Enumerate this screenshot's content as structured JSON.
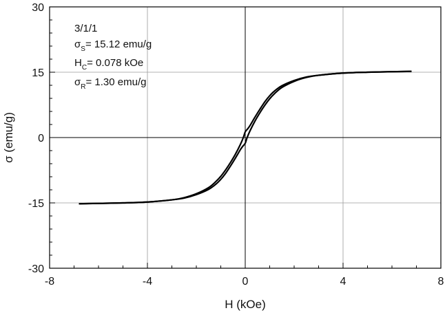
{
  "chart_data": {
    "type": "line",
    "title": "",
    "xlabel": "H (kOe)",
    "ylabel": "σ (emu/g)",
    "xlim": [
      -8,
      8
    ],
    "ylim": [
      -30,
      30
    ],
    "x_ticks": [
      -8,
      -4,
      0,
      4,
      8
    ],
    "y_ticks": [
      -30,
      -15,
      0,
      15,
      30
    ],
    "x_tick_labels": [
      "-8",
      "-4",
      "0",
      "4",
      "8"
    ],
    "y_tick_labels": [
      "-30",
      "-15",
      "0",
      "15",
      "30"
    ],
    "grid": true,
    "line_color": "#000000",
    "annotations": {
      "sample": "3/1/1",
      "ms": {
        "symbol": "σ",
        "sub": "S",
        "text": "= 15.12 emu/g"
      },
      "hc": {
        "symbol": "H",
        "sub": "C",
        "text": "= 0.078 kOe"
      },
      "mr": {
        "symbol": "σ",
        "sub": "R",
        "text": "= 1.30 emu/g"
      }
    },
    "series": [
      {
        "branch": "descending",
        "x": [
          6.8,
          5.0,
          4.0,
          3.0,
          2.5,
          2.0,
          1.5,
          1.2,
          1.0,
          0.8,
          0.6,
          0.4,
          0.2,
          0.1,
          0.0,
          -0.078,
          -0.2,
          -0.4,
          -0.6,
          -0.8,
          -1.0,
          -1.2,
          -1.5,
          -2.0,
          -2.5,
          -3.0,
          -4.0,
          -5.0,
          -6.8
        ],
        "y": [
          15.2,
          15.0,
          14.8,
          14.3,
          13.9,
          13.1,
          11.9,
          10.7,
          9.6,
          8.2,
          6.5,
          4.7,
          2.8,
          2.0,
          1.3,
          0.0,
          -1.6,
          -3.8,
          -5.7,
          -7.4,
          -8.9,
          -10.1,
          -11.5,
          -12.9,
          -13.8,
          -14.3,
          -14.8,
          -15.0,
          -15.2
        ]
      },
      {
        "branch": "ascending",
        "x": [
          -6.8,
          -5.0,
          -4.0,
          -3.0,
          -2.5,
          -2.0,
          -1.5,
          -1.2,
          -1.0,
          -0.8,
          -0.6,
          -0.4,
          -0.2,
          -0.1,
          0.0,
          0.078,
          0.2,
          0.4,
          0.6,
          0.8,
          1.0,
          1.2,
          1.5,
          2.0,
          2.5,
          3.0,
          4.0,
          5.0,
          6.8
        ],
        "y": [
          -15.2,
          -15.0,
          -14.8,
          -14.3,
          -13.9,
          -13.1,
          -11.9,
          -10.7,
          -9.6,
          -8.2,
          -6.5,
          -4.7,
          -2.8,
          -2.0,
          -1.3,
          0.0,
          1.6,
          3.8,
          5.7,
          7.4,
          8.9,
          10.1,
          11.5,
          12.9,
          13.8,
          14.3,
          14.8,
          15.0,
          15.2
        ]
      }
    ]
  }
}
